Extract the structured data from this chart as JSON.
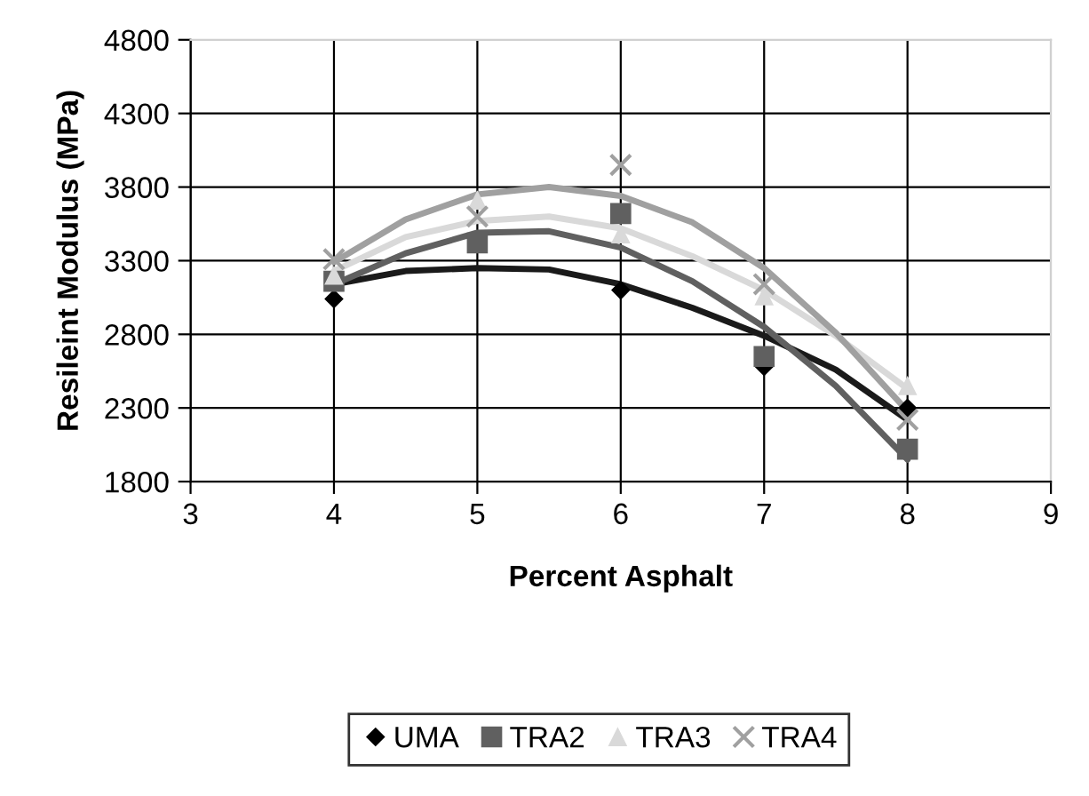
{
  "chart_data": {
    "type": "scatter",
    "xlabel": "Percent Asphalt",
    "ylabel": "Resileint Modulus (MPa)",
    "xlim": [
      3,
      9
    ],
    "xticks": [
      3,
      4,
      5,
      6,
      7,
      8,
      9
    ],
    "ylim": [
      1800,
      4800
    ],
    "yticks": [
      1800,
      2300,
      2800,
      3300,
      3800,
      4300,
      4800
    ],
    "grid": true,
    "legend": "bottom",
    "series": [
      {
        "name": "UMA",
        "marker": "diamond",
        "color": "#000000",
        "x": [
          4,
          5,
          6,
          7,
          8
        ],
        "values": [
          3040,
          null,
          3100,
          2580,
          2300
        ]
      },
      {
        "name": "TRA2",
        "marker": "square",
        "color": "#606060",
        "x": [
          4,
          5,
          6,
          7,
          8
        ],
        "values": [
          3160,
          3420,
          3620,
          2650,
          2020
        ]
      },
      {
        "name": "TRA3",
        "marker": "triangle",
        "color": "#d9d9d9",
        "x": [
          4,
          5,
          6,
          7,
          8
        ],
        "values": [
          3200,
          3710,
          3480,
          3060,
          2450
        ]
      },
      {
        "name": "TRA4",
        "marker": "cross",
        "color": "#a0a0a0",
        "x": [
          4,
          5,
          6,
          7,
          8
        ],
        "values": [
          3310,
          3600,
          3950,
          3140,
          2220
        ]
      },
      {
        "type": "line",
        "marker": "none",
        "color": "#1a1a1a",
        "x": [
          4,
          4.5,
          5,
          5.5,
          6,
          6.5,
          7,
          7.5,
          8
        ],
        "values": [
          3140,
          3230,
          3250,
          3240,
          3140,
          2980,
          2790,
          2560,
          2220
        ]
      },
      {
        "type": "line",
        "marker": "none",
        "color": "#606060",
        "x": [
          4,
          4.5,
          5,
          5.5,
          6,
          6.5,
          7,
          7.5,
          8
        ],
        "values": [
          3140,
          3350,
          3490,
          3500,
          3390,
          3160,
          2850,
          2450,
          1950
        ]
      },
      {
        "type": "line",
        "marker": "none",
        "color": "#d9d9d9",
        "x": [
          4,
          4.5,
          5,
          5.5,
          6,
          6.5,
          7,
          7.5,
          8
        ],
        "values": [
          3230,
          3460,
          3570,
          3600,
          3520,
          3330,
          3100,
          2790,
          2430
        ]
      },
      {
        "type": "line",
        "marker": "none",
        "color": "#a0a0a0",
        "x": [
          4,
          4.5,
          5,
          5.5,
          6,
          6.5,
          7,
          7.5,
          8
        ],
        "values": [
          3290,
          3580,
          3750,
          3800,
          3740,
          3560,
          3250,
          2810,
          2280
        ]
      }
    ]
  }
}
